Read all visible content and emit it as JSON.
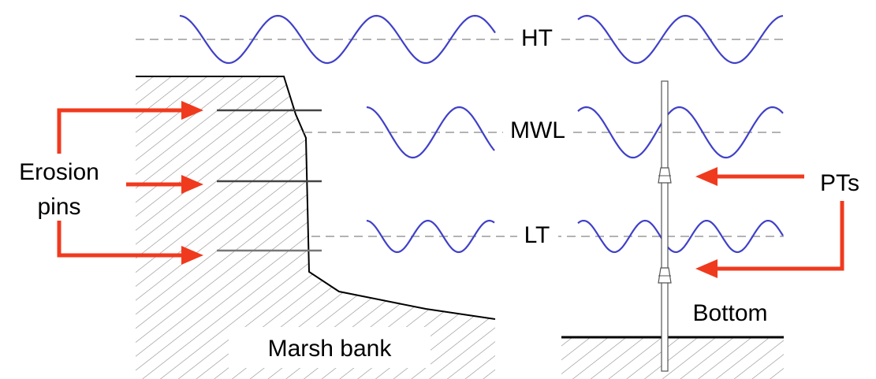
{
  "labels": {
    "ht": "HT",
    "mwl": "MWL",
    "lt": "LT",
    "erosion_pins_line1": "Erosion",
    "erosion_pins_line2": "pins",
    "pts": "PTs",
    "bottom": "Bottom",
    "marsh_bank": "Marsh bank"
  },
  "colors": {
    "wave": "#4040c8",
    "arrow": "#f03a1e",
    "hatch": "#8c8c8c",
    "bank_outline": "#000000",
    "reference_line": "#9a9a9a"
  },
  "icons": {
    "pressure_transducer": "pressure-transducer-icon"
  }
}
